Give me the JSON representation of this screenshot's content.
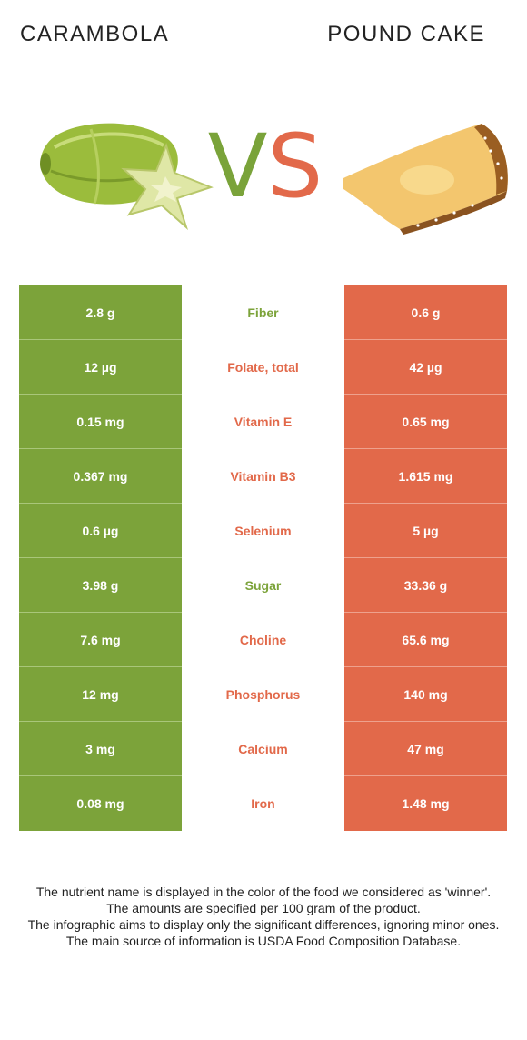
{
  "header": {
    "left_food": "CARAMBOLA",
    "right_food": "POUND CAKE",
    "vs_v": "V",
    "vs_s": "S"
  },
  "colors": {
    "winner_left": "#7ca33a",
    "winner_right": "#e2694a"
  },
  "rows": [
    {
      "nutrient": "Fiber",
      "left": "2.8 g",
      "right": "0.6 g",
      "winner": "left"
    },
    {
      "nutrient": "Folate, total",
      "left": "12 µg",
      "right": "42 µg",
      "winner": "right"
    },
    {
      "nutrient": "Vitamin E",
      "left": "0.15 mg",
      "right": "0.65 mg",
      "winner": "right"
    },
    {
      "nutrient": "Vitamin B3",
      "left": "0.367 mg",
      "right": "1.615 mg",
      "winner": "right"
    },
    {
      "nutrient": "Selenium",
      "left": "0.6 µg",
      "right": "5 µg",
      "winner": "right"
    },
    {
      "nutrient": "Sugar",
      "left": "3.98 g",
      "right": "33.36 g",
      "winner": "left"
    },
    {
      "nutrient": "Choline",
      "left": "7.6 mg",
      "right": "65.6 mg",
      "winner": "right"
    },
    {
      "nutrient": "Phosphorus",
      "left": "12 mg",
      "right": "140 mg",
      "winner": "right"
    },
    {
      "nutrient": "Calcium",
      "left": "3 mg",
      "right": "47 mg",
      "winner": "right"
    },
    {
      "nutrient": "Iron",
      "left": "0.08 mg",
      "right": "1.48 mg",
      "winner": "right"
    }
  ],
  "notes": [
    "The nutrient name is displayed in the color of the food we considered as 'winner'.",
    "The amounts are specified per 100 gram of the product.",
    "The infographic aims to display only the significant differences, ignoring minor ones.",
    "The main source of information is USDA Food Composition Database."
  ]
}
